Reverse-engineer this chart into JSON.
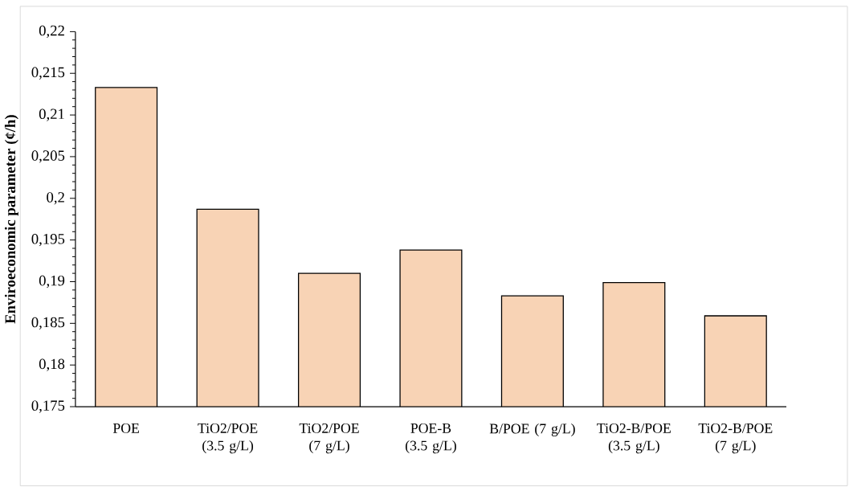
{
  "chart_data": {
    "type": "bar",
    "ylabel": "**Enviroeconomic parameter** (¢/h)",
    "categories": [
      "POE",
      "TiO2/POE (3.5 g/L)",
      "TiO2/POE (7 g/L)",
      "POE-B (3.5 g/L)",
      "B/POE (7 g/L)",
      "TiO2-B/POE (3.5 g/L)",
      "TiO2-B/POE (7 g/L)"
    ],
    "values": [
      0.2133,
      0.1987,
      0.191,
      0.1938,
      0.1883,
      0.1899,
      0.1859
    ],
    "color": "#f8d3b5",
    "ylim": [
      0.175,
      0.22
    ],
    "yticks": [
      {
        "value": 0.175,
        "label": "0,175"
      },
      {
        "value": 0.18,
        "label": "0,18"
      },
      {
        "value": 0.185,
        "label": "0,185"
      },
      {
        "value": 0.19,
        "label": "0,19"
      },
      {
        "value": 0.195,
        "label": "0,195"
      },
      {
        "value": 0.2,
        "label": "0,2"
      },
      {
        "value": 0.205,
        "label": "0,205"
      },
      {
        "value": 0.21,
        "label": "0,21"
      },
      {
        "value": 0.215,
        "label": "0,215"
      },
      {
        "value": 0.22,
        "label": "0,22"
      }
    ],
    "grid": false
  }
}
